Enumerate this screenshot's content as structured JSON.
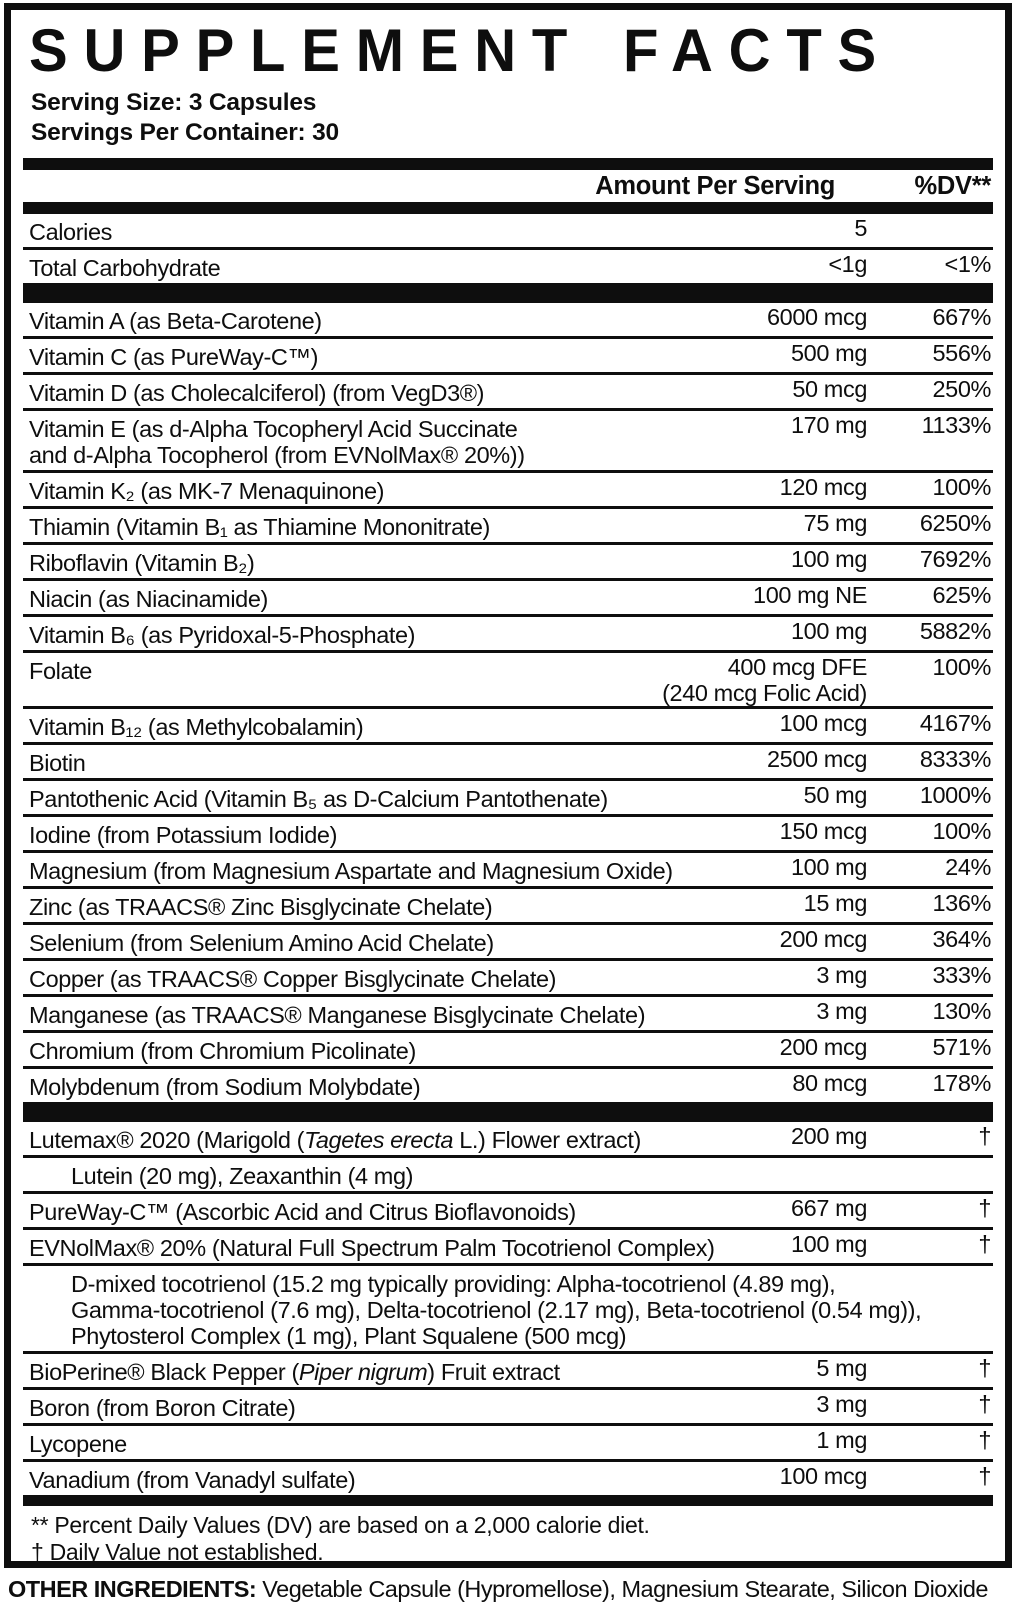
{
  "title": "SUPPLEMENT FACTS",
  "serving": {
    "size": "Serving Size: 3 Capsules",
    "per_container": "Servings Per Container: 30"
  },
  "columns": {
    "amount": "Amount Per Serving",
    "dv": "%DV**"
  },
  "macro_rows": [
    {
      "name_lines": [
        [
          {
            "t": "Calories"
          }
        ]
      ],
      "amounts": [
        "5"
      ],
      "dv": ""
    },
    {
      "name_lines": [
        [
          {
            "t": "Total Carbohydrate"
          }
        ]
      ],
      "amounts": [
        "<1g"
      ],
      "dv": "<1%"
    }
  ],
  "vitamin_rows": [
    {
      "name_lines": [
        [
          {
            "t": "Vitamin A (as Beta-Carotene)"
          }
        ]
      ],
      "amounts": [
        "6000 mcg"
      ],
      "dv": "667%"
    },
    {
      "name_lines": [
        [
          {
            "t": "Vitamin C (as PureWay-C™)"
          }
        ]
      ],
      "amounts": [
        "500 mg"
      ],
      "dv": "556%"
    },
    {
      "name_lines": [
        [
          {
            "t": "Vitamin D (as Cholecalciferol) (from VegD3®)"
          }
        ]
      ],
      "amounts": [
        "50 mcg"
      ],
      "dv": "250%"
    },
    {
      "name_lines": [
        [
          {
            "t": "Vitamin E (as d-Alpha Tocopheryl Acid Succinate"
          }
        ],
        [
          {
            "t": "and d-Alpha Tocopherol (from EVNolMax® 20%))"
          }
        ]
      ],
      "amounts": [
        "170 mg"
      ],
      "dv": "1133%"
    },
    {
      "name_lines": [
        [
          {
            "t": "Vitamin K₂ (as MK-7 Menaquinone)"
          }
        ]
      ],
      "amounts": [
        "120 mcg"
      ],
      "dv": "100%"
    },
    {
      "name_lines": [
        [
          {
            "t": "Thiamin (Vitamin B₁ as Thiamine Mononitrate)"
          }
        ]
      ],
      "amounts": [
        "75 mg"
      ],
      "dv": "6250%"
    },
    {
      "name_lines": [
        [
          {
            "t": "Riboflavin (Vitamin B₂)"
          }
        ]
      ],
      "amounts": [
        "100 mg"
      ],
      "dv": "7692%"
    },
    {
      "name_lines": [
        [
          {
            "t": "Niacin (as Niacinamide)"
          }
        ]
      ],
      "amounts": [
        "100 mg NE"
      ],
      "dv": "625%"
    },
    {
      "name_lines": [
        [
          {
            "t": "Vitamin B₆ (as Pyridoxal-5-Phosphate)"
          }
        ]
      ],
      "amounts": [
        "100 mg"
      ],
      "dv": "5882%"
    },
    {
      "name_lines": [
        [
          {
            "t": "Folate"
          }
        ]
      ],
      "amounts": [
        "400 mcg DFE",
        "(240 mcg Folic Acid)"
      ],
      "dv": "100%"
    },
    {
      "name_lines": [
        [
          {
            "t": "Vitamin B₁₂ (as Methylcobalamin)"
          }
        ]
      ],
      "amounts": [
        "100 mcg"
      ],
      "dv": "4167%"
    },
    {
      "name_lines": [
        [
          {
            "t": "Biotin"
          }
        ]
      ],
      "amounts": [
        "2500 mcg"
      ],
      "dv": "8333%"
    },
    {
      "name_lines": [
        [
          {
            "t": "Pantothenic Acid (Vitamin B₅ as D-Calcium Pantothenate)"
          }
        ]
      ],
      "amounts": [
        "50 mg"
      ],
      "dv": "1000%"
    },
    {
      "name_lines": [
        [
          {
            "t": "Iodine (from Potassium Iodide)"
          }
        ]
      ],
      "amounts": [
        "150 mcg"
      ],
      "dv": "100%"
    },
    {
      "name_lines": [
        [
          {
            "t": "Magnesium (from Magnesium Aspartate and Magnesium Oxide)"
          }
        ]
      ],
      "amounts": [
        "100 mg"
      ],
      "dv": "24%"
    },
    {
      "name_lines": [
        [
          {
            "t": "Zinc (as TRAACS® Zinc Bisglycinate Chelate)"
          }
        ]
      ],
      "amounts": [
        "15 mg"
      ],
      "dv": "136%"
    },
    {
      "name_lines": [
        [
          {
            "t": "Selenium (from Selenium Amino Acid Chelate)"
          }
        ]
      ],
      "amounts": [
        "200 mcg"
      ],
      "dv": "364%"
    },
    {
      "name_lines": [
        [
          {
            "t": "Copper (as TRAACS® Copper Bisglycinate Chelate)"
          }
        ]
      ],
      "amounts": [
        "3 mg"
      ],
      "dv": "333%"
    },
    {
      "name_lines": [
        [
          {
            "t": "Manganese (as TRAACS® Manganese Bisglycinate Chelate)"
          }
        ]
      ],
      "amounts": [
        "3 mg"
      ],
      "dv": "130%"
    },
    {
      "name_lines": [
        [
          {
            "t": "Chromium (from Chromium Picolinate)"
          }
        ]
      ],
      "amounts": [
        "200 mcg"
      ],
      "dv": "571%"
    },
    {
      "name_lines": [
        [
          {
            "t": "Molybdenum (from Sodium Molybdate)"
          }
        ]
      ],
      "amounts": [
        "80 mcg"
      ],
      "dv": "178%"
    }
  ],
  "botanical_rows": [
    {
      "name_lines": [
        [
          {
            "t": "Lutemax® 2020 (Marigold ("
          },
          {
            "t": "Tagetes erecta",
            "i": true
          },
          {
            "t": " L.) Flower extract)"
          }
        ]
      ],
      "amounts": [
        "200 mg"
      ],
      "dv": "†"
    },
    {
      "sub": true,
      "name_lines": [
        [
          {
            "t": "Lutein (20 mg), Zeaxanthin (4 mg)"
          }
        ]
      ]
    },
    {
      "name_lines": [
        [
          {
            "t": "PureWay-C™ (Ascorbic Acid and Citrus Bioflavonoids)"
          }
        ]
      ],
      "amounts": [
        "667 mg"
      ],
      "dv": "†"
    },
    {
      "name_lines": [
        [
          {
            "t": "EVNolMax® 20% (Natural Full Spectrum Palm Tocotrienol Complex)"
          }
        ]
      ],
      "amounts": [
        "100 mg"
      ],
      "dv": "†"
    },
    {
      "sub": true,
      "name_lines": [
        [
          {
            "t": "D-mixed tocotrienol (15.2 mg typically providing: Alpha-tocotrienol (4.89 mg),"
          }
        ],
        [
          {
            "t": "Gamma-tocotrienol (7.6 mg), Delta-tocotrienol (2.17 mg), Beta-tocotrienol (0.54 mg)),"
          }
        ],
        [
          {
            "t": "Phytosterol Complex (1 mg), Plant Squalene (500 mcg)"
          }
        ]
      ]
    },
    {
      "name_lines": [
        [
          {
            "t": "BioPerine® Black Pepper ("
          },
          {
            "t": "Piper nigrum",
            "i": true
          },
          {
            "t": ") Fruit extract"
          }
        ]
      ],
      "amounts": [
        "5 mg"
      ],
      "dv": "†"
    },
    {
      "name_lines": [
        [
          {
            "t": "Boron (from Boron Citrate)"
          }
        ]
      ],
      "amounts": [
        "3 mg"
      ],
      "dv": "†"
    },
    {
      "name_lines": [
        [
          {
            "t": "Lycopene"
          }
        ]
      ],
      "amounts": [
        "1 mg"
      ],
      "dv": "†"
    },
    {
      "name_lines": [
        [
          {
            "t": "Vanadium (from Vanadyl sulfate)"
          }
        ]
      ],
      "amounts": [
        "100 mcg"
      ],
      "dv": "†"
    }
  ],
  "footnotes": [
    "** Percent Daily Values (DV) are based on a 2,000 calorie diet.",
    "† Daily Value not established."
  ],
  "other_ingredients": {
    "label": "OTHER INGREDIENTS:",
    "text": " Vegetable Capsule (Hypromellose), Magnesium Stearate, Silicon Dioxide"
  },
  "colors": {
    "ink": "#0e0e0e",
    "paper": "#ffffff"
  }
}
